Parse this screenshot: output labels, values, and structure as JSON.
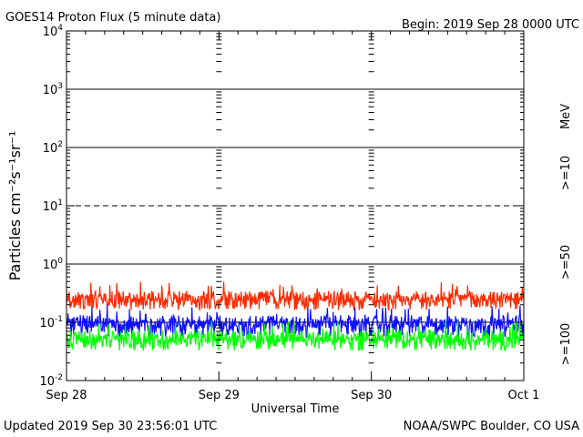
{
  "title": "GOES14 Proton Flux (5 minute data)",
  "begin": "Begin: 2019 Sep 28 0000 UTC",
  "updated": "Updated 2019 Sep 30 23:56:01 UTC",
  "credit": "NOAA/SWPC Boulder, CO USA",
  "chart_data": {
    "type": "line",
    "title": "GOES14 Proton Flux (5 minute data)",
    "xlabel": "Universal Time",
    "ylabel": "Particles cm⁻²s⁻¹sr⁻¹",
    "yscale": "log",
    "ylim": [
      0.01,
      10000
    ],
    "y_ticks": [
      {
        "value": 0.01,
        "base": "10",
        "exp": "-2"
      },
      {
        "value": 0.1,
        "base": "10",
        "exp": "-1"
      },
      {
        "value": 1,
        "base": "10",
        "exp": "0"
      },
      {
        "value": 10,
        "base": "10",
        "exp": "1"
      },
      {
        "value": 100,
        "base": "10",
        "exp": "2"
      },
      {
        "value": 1000,
        "base": "10",
        "exp": "3"
      },
      {
        "value": 10000,
        "base": "10",
        "exp": "4"
      }
    ],
    "xlim": [
      "2019-09-28",
      "2019-10-01"
    ],
    "x_ticks": [
      "Sep 28",
      "Sep 29",
      "Sep 30",
      "Oct 1"
    ],
    "threshold_lines": [
      {
        "value": 1000,
        "style": "solid"
      },
      {
        "value": 100,
        "style": "solid"
      },
      {
        "value": 10,
        "style": "dashed"
      },
      {
        "value": 1,
        "style": "solid"
      },
      {
        "value": 0.1,
        "style": "solid"
      }
    ],
    "legend": {
      "placement": "right",
      "unit": "MeV"
    },
    "series": [
      {
        "name": ">=10",
        "color": "#ff2a00",
        "typical": 0.22,
        "min": 0.15,
        "max": 0.5
      },
      {
        "name": ">=50",
        "color": "#1010ff",
        "typical": 0.08,
        "min": 0.05,
        "max": 0.2
      },
      {
        "name": ">=100",
        "color": "#00ff00",
        "typical": 0.045,
        "min": 0.03,
        "max": 0.11
      }
    ]
  }
}
